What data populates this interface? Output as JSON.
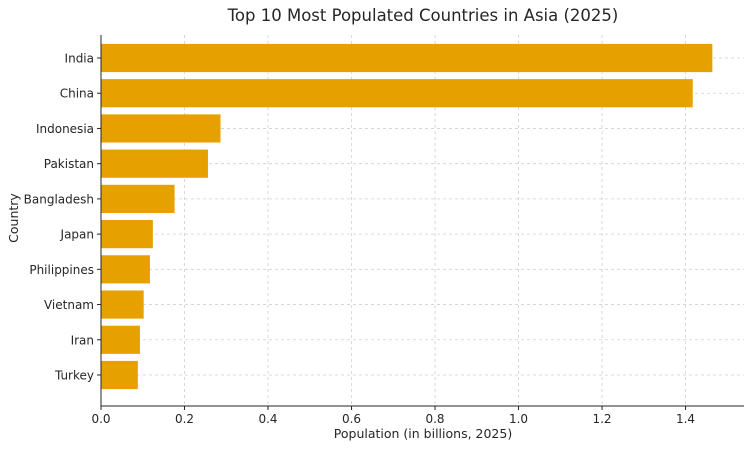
{
  "chart_data": {
    "type": "bar",
    "orientation": "horizontal",
    "title": "Top 10 Most Populated Countries in Asia (2025)",
    "xlabel": "Population (in billions, 2025)",
    "ylabel": "Country",
    "categories": [
      "India",
      "China",
      "Indonesia",
      "Pakistan",
      "Bangladesh",
      "Japan",
      "Philippines",
      "Vietnam",
      "Iran",
      "Turkey"
    ],
    "values": [
      1.463,
      1.416,
      0.285,
      0.255,
      0.175,
      0.123,
      0.116,
      0.101,
      0.092,
      0.087
    ],
    "xlim": [
      0,
      1.54
    ],
    "xticks": [
      "0.0",
      "0.2",
      "0.4",
      "0.6",
      "0.8",
      "1.0",
      "1.2",
      "1.4"
    ],
    "xtick_values": [
      0,
      0.2,
      0.4,
      0.6,
      0.8,
      1.0,
      1.2,
      1.4
    ],
    "grid": true,
    "bar_color": "#e6a000",
    "grid_color": "#d0d0d0"
  }
}
